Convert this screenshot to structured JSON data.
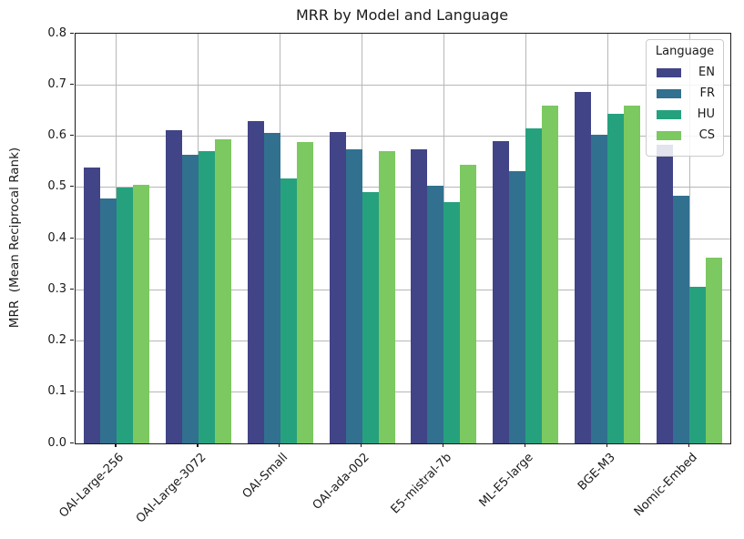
{
  "chart_data": {
    "type": "bar",
    "title": "MRR by Model and Language",
    "xlabel": "",
    "ylabel": "MRR  (Mean Reciprocal Rank)",
    "ylim": [
      0.0,
      0.8
    ],
    "yticks": [
      0.0,
      0.1,
      0.2,
      0.3,
      0.4,
      0.5,
      0.6,
      0.7,
      0.8
    ],
    "grid": true,
    "legend_title": "Language",
    "legend_position": "upper right",
    "categories": [
      "OAI-Large-256",
      "OAI-Large-3072",
      "OAI-Small",
      "OAI-ada-002",
      "E5-mistral-7b",
      "ML-E5-large",
      "BGE-M3",
      "Nomic-Embed"
    ],
    "series": [
      {
        "name": "EN",
        "color": "#414487",
        "values": [
          0.538,
          0.612,
          0.63,
          0.608,
          0.575,
          0.591,
          0.687,
          0.584
        ]
      },
      {
        "name": "FR",
        "color": "#31708e",
        "values": [
          0.478,
          0.563,
          0.606,
          0.574,
          0.503,
          0.532,
          0.602,
          0.483
        ]
      },
      {
        "name": "HU",
        "color": "#26a17e",
        "values": [
          0.5,
          0.571,
          0.517,
          0.491,
          0.472,
          0.616,
          0.643,
          0.305
        ]
      },
      {
        "name": "CS",
        "color": "#7cc861",
        "values": [
          0.505,
          0.593,
          0.589,
          0.57,
          0.544,
          0.66,
          0.659,
          0.363
        ]
      }
    ]
  },
  "style": {
    "grid_color": "#b7b7b7",
    "spine_color": "#1a1a1a",
    "text_color": "#1a1a1a",
    "legend_border": "#cccccc"
  }
}
